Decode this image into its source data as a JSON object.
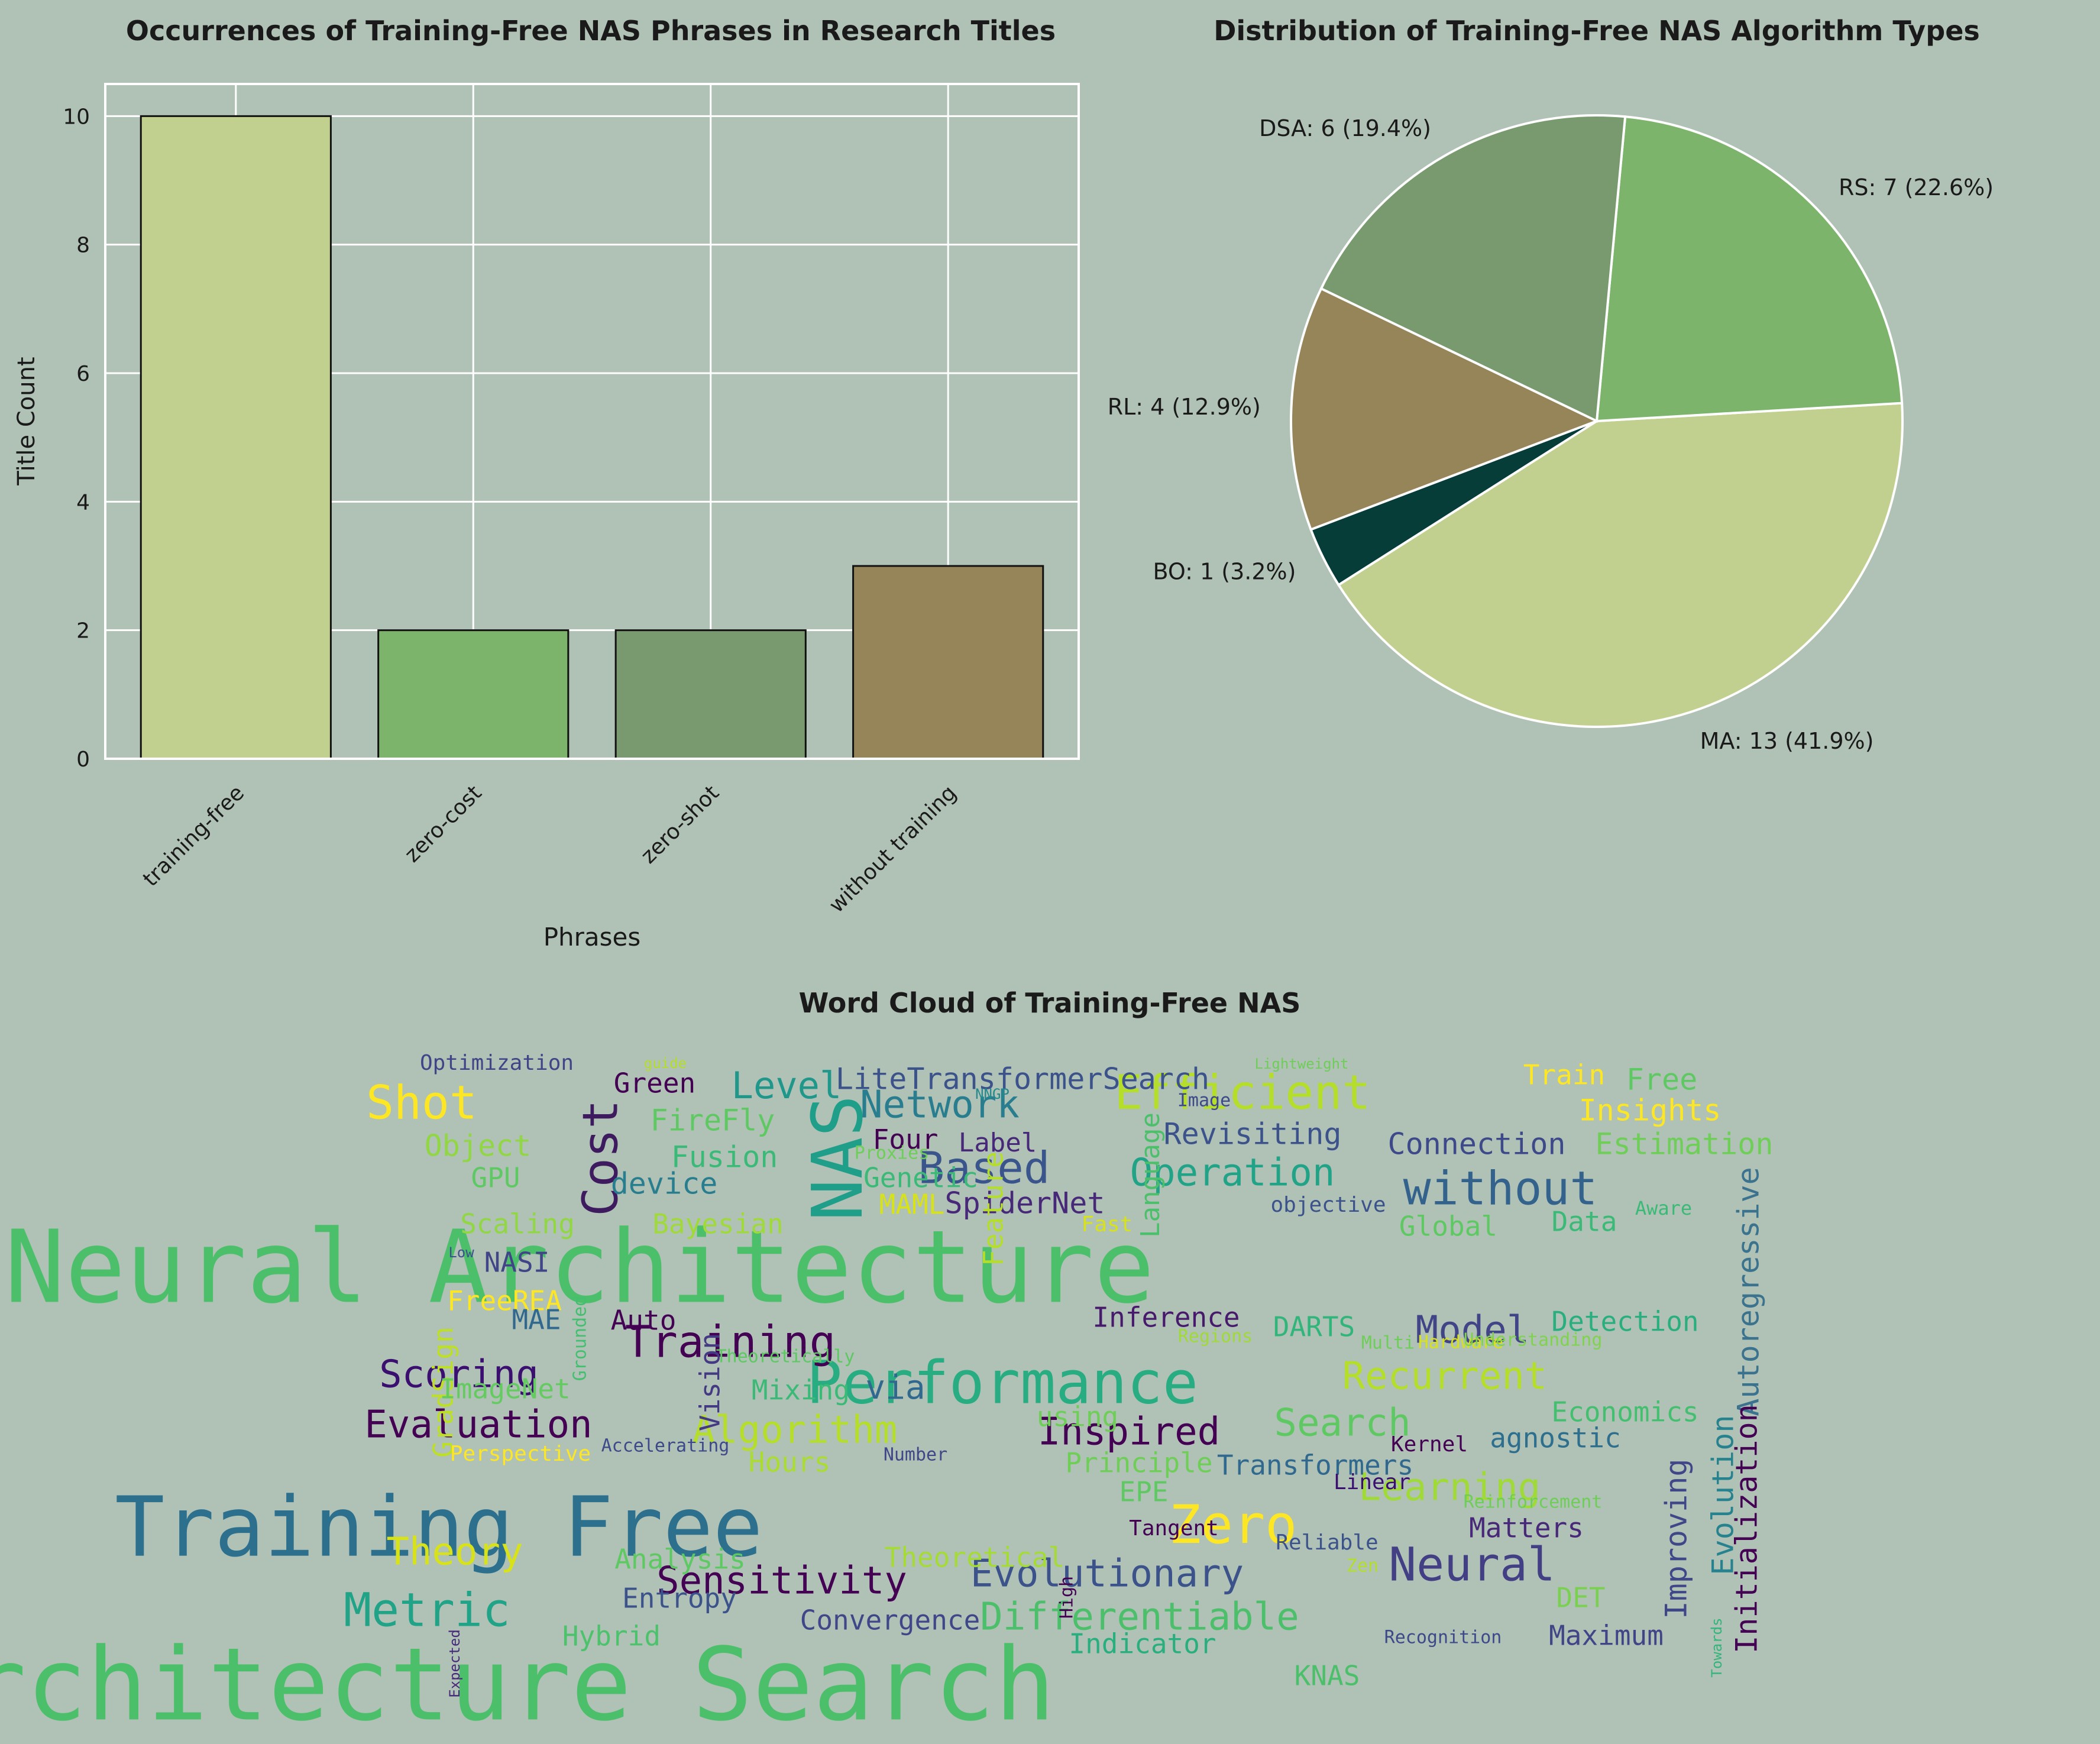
{
  "colors": {
    "background": "#b0c1b5",
    "grid": "#ffffff",
    "text": "#1a1a1a",
    "bar_palette": [
      "#c1d08e",
      "#7cb46b",
      "#789a6e",
      "#958558"
    ],
    "pie_palette": {
      "MA": "#c1d08e",
      "RS": "#7cb46b",
      "DSA": "#789a6e",
      "RL": "#958558",
      "BO": "#063d39"
    }
  },
  "chart_data": [
    {
      "type": "bar",
      "title": "Occurrences of Training-Free NAS Phrases in Research Titles",
      "xlabel": "Phrases",
      "ylabel": "Title Count",
      "categories": [
        "training-free",
        "zero-cost",
        "zero-shot",
        "without training"
      ],
      "values": [
        10,
        2,
        2,
        3
      ],
      "ylim": [
        0,
        10.5
      ],
      "yticks": [
        "0",
        "2",
        "4",
        "6",
        "8",
        "10"
      ],
      "grid": true
    },
    {
      "type": "pie",
      "title": "Distribution of Training-Free NAS Algorithm Types",
      "slices": [
        {
          "label": "MA",
          "value": 13,
          "text": "MA: 13 (41.9%)"
        },
        {
          "label": "RS",
          "value": 7,
          "text": "RS: 7 (22.6%)"
        },
        {
          "label": "DSA",
          "value": 6,
          "text": "DSA: 6 (19.4%)"
        },
        {
          "label": "RL",
          "value": 4,
          "text": "RL: 4 (12.9%)"
        },
        {
          "label": "BO",
          "value": 1,
          "text": "BO: 1 (3.2%)"
        }
      ]
    },
    {
      "type": "wordcloud",
      "title": "Word Cloud of Training-Free NAS",
      "words": [
        "Neural Architecture",
        "Architecture Search",
        "Training Free",
        "NAS",
        "Performance",
        "Efficient",
        "Zero",
        "Cost",
        "Based",
        "without",
        "Shot",
        "Training",
        "Neural",
        "Metric",
        "Network",
        "Operation",
        "Evaluation",
        "Algorithm",
        "Inspired",
        "Differentiable",
        "Evolutionary",
        "Sensitivity",
        "Search",
        "Learning",
        "Recurrent",
        "Model",
        "Scoring",
        "Theory",
        "Level",
        "Autoregressive",
        "Initialization",
        "Improving",
        "Evolution",
        "LiteTransformerSearch",
        "Green",
        "Optimization",
        "Train",
        "Free",
        "Insights",
        "FireFly",
        "Object",
        "Fusion",
        "Four",
        "Label",
        "Revisiting",
        "Connection",
        "Estimation",
        "GPU",
        "device",
        "Genetic",
        "MAML",
        "SpiderNet",
        "objective",
        "Language",
        "Scaling",
        "Bayesian",
        "Feature",
        "Fast",
        "Global",
        "Data",
        "Aware",
        "NASI",
        "FreeREA",
        "MAE",
        "Auto",
        "Inference",
        "DARTS",
        "Detection",
        "GradSign",
        "ImageNet",
        "Vision",
        "Mixing",
        "via",
        "Economics",
        "agnostic",
        "Hours",
        "Principle",
        "Transformers",
        "Perspective",
        "Accelerating",
        "Number",
        "using",
        "Kernel",
        "EPE",
        "Linear",
        "Reinforcement",
        "Tangent",
        "Reliable",
        "Matters",
        "Analysis",
        "Theoretical",
        "Entropy",
        "Convergence",
        "DET",
        "Hybrid",
        "Indicator",
        "Maximum",
        "Recognition",
        "KNAS",
        "Expected",
        "High",
        "Towards",
        "Lightweight",
        "Image",
        "NNGP",
        "Proxies",
        "Low",
        "Grounded",
        "Regions",
        "Multi",
        "Hardware",
        "Understanding",
        "Theoretically",
        "Zen",
        "guide"
      ]
    }
  ]
}
